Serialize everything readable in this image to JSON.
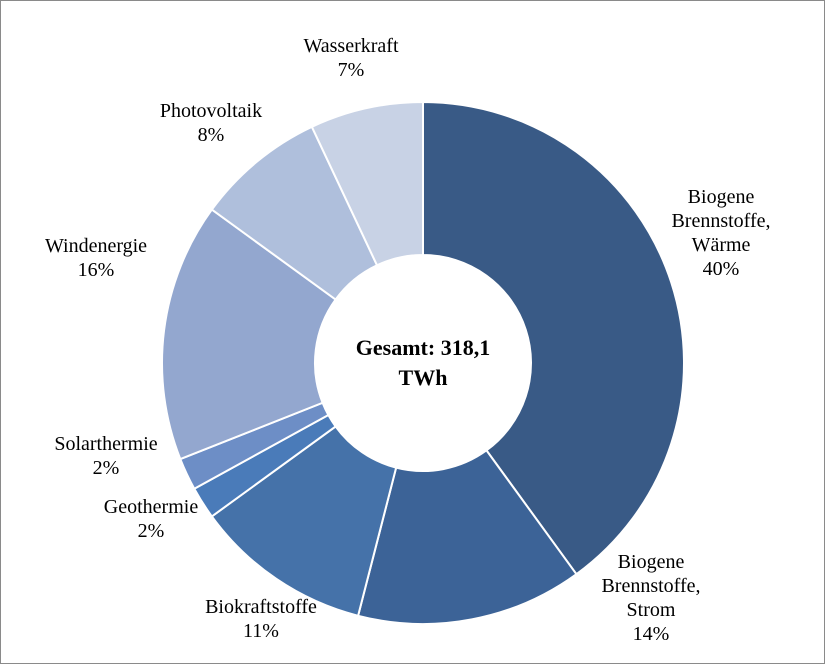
{
  "chart_data": {
    "type": "donut",
    "center_label": "Gesamt: 318,1 TWh",
    "categories": [
      "Biogene Brennstoffe, Wärme",
      "Biogene Brennstoffe, Strom",
      "Biokraftstoffe",
      "Geothermie",
      "Solarthermie",
      "Windenergie",
      "Photovoltaik",
      "Wasserkraft"
    ],
    "values": [
      40,
      14,
      11,
      2,
      2,
      16,
      8,
      7
    ],
    "value_labels": [
      "40%",
      "14%",
      "11%",
      "2%",
      "2%",
      "16%",
      "8%",
      "7%"
    ],
    "colors": [
      "#395a86",
      "#3c6397",
      "#4572a9",
      "#4a7bb9",
      "#6d8ec6",
      "#93a7cf",
      "#afbfdc",
      "#c8d2e5"
    ]
  }
}
